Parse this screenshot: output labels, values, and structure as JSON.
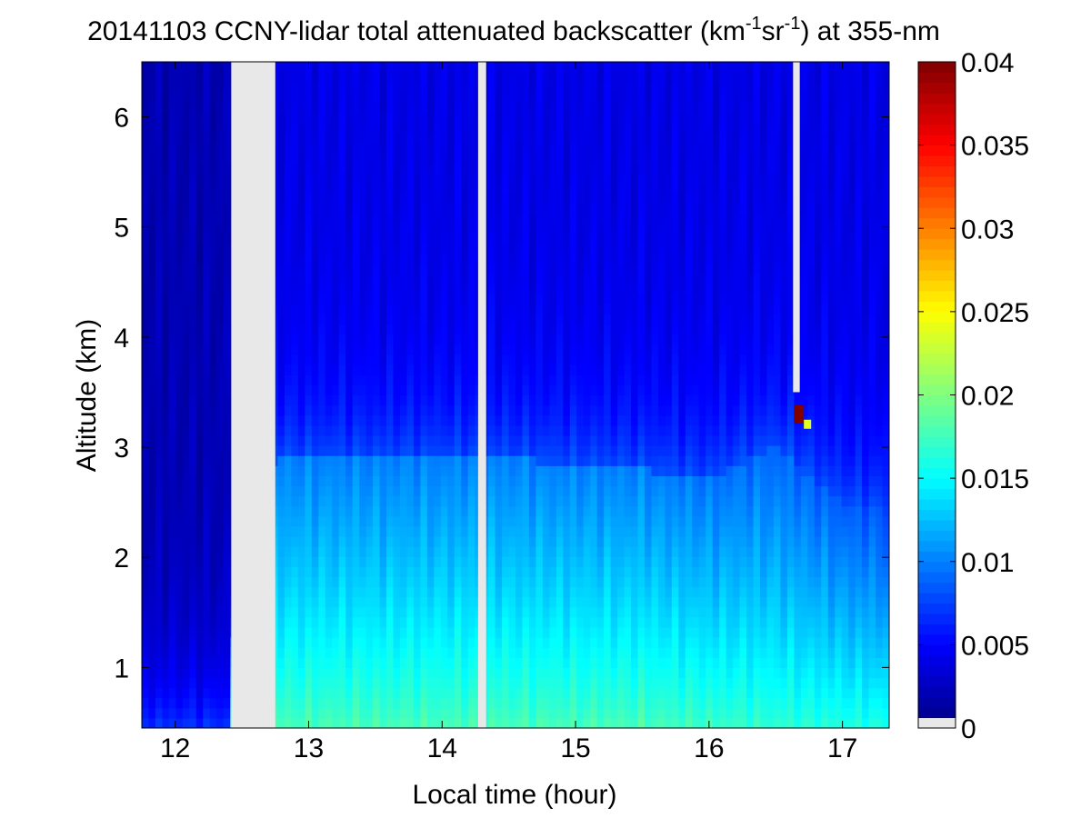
{
  "chart_data": {
    "type": "heatmap",
    "title": {
      "main": "20141103 CCNY-lidar total attenuated backscatter (km",
      "sup1": "-1",
      "mid": "sr",
      "sup2": "-1",
      "end": ") at 355-nm"
    },
    "xlabel": "Local time (hour)",
    "ylabel": "Altitude (km)",
    "xlim": [
      11.75,
      17.35
    ],
    "ylim": [
      0.45,
      6.5
    ],
    "x_ticks": [
      12,
      13,
      14,
      15,
      16,
      17
    ],
    "y_ticks": [
      1,
      2,
      3,
      4,
      5,
      6
    ],
    "colorbar": {
      "min": 0,
      "max": 0.04,
      "ticks": [
        0,
        0.005,
        0.01,
        0.015,
        0.02,
        0.025,
        0.03,
        0.035,
        0.04
      ],
      "tick_labels": [
        "0",
        "0.005",
        "0.01",
        "0.015",
        "0.02",
        "0.025",
        "0.03",
        "0.035",
        "0.04"
      ],
      "colormap": "jet",
      "no_data_color": "#e8e8e8"
    },
    "no_data_intervals": [
      {
        "x_start": 12.42,
        "x_end": 12.75,
        "y_start": 0.45,
        "y_end": 6.5
      },
      {
        "x_start": 14.27,
        "x_end": 14.33,
        "y_start": 0.45,
        "y_end": 6.5
      },
      {
        "x_start": 16.63,
        "x_end": 16.68,
        "y_start": 3.5,
        "y_end": 6.5
      }
    ],
    "aerosol_layer": {
      "boundary_layer_top_km": [
        {
          "x": 11.75,
          "y": 1.3
        },
        {
          "x": 12.42,
          "y": 1.2
        },
        {
          "x": 12.75,
          "y": 2.9
        },
        {
          "x": 13.5,
          "y": 2.9
        },
        {
          "x": 14.5,
          "y": 2.9
        },
        {
          "x": 15.5,
          "y": 2.8
        },
        {
          "x": 16.0,
          "y": 2.7
        },
        {
          "x": 16.5,
          "y": 3.0
        },
        {
          "x": 17.0,
          "y": 2.5
        },
        {
          "x": 17.35,
          "y": 2.4
        }
      ],
      "surface_peak_value": 0.018
    },
    "cloud_feature": {
      "x": 16.67,
      "altitude_km": 3.3,
      "value": 0.04
    }
  }
}
